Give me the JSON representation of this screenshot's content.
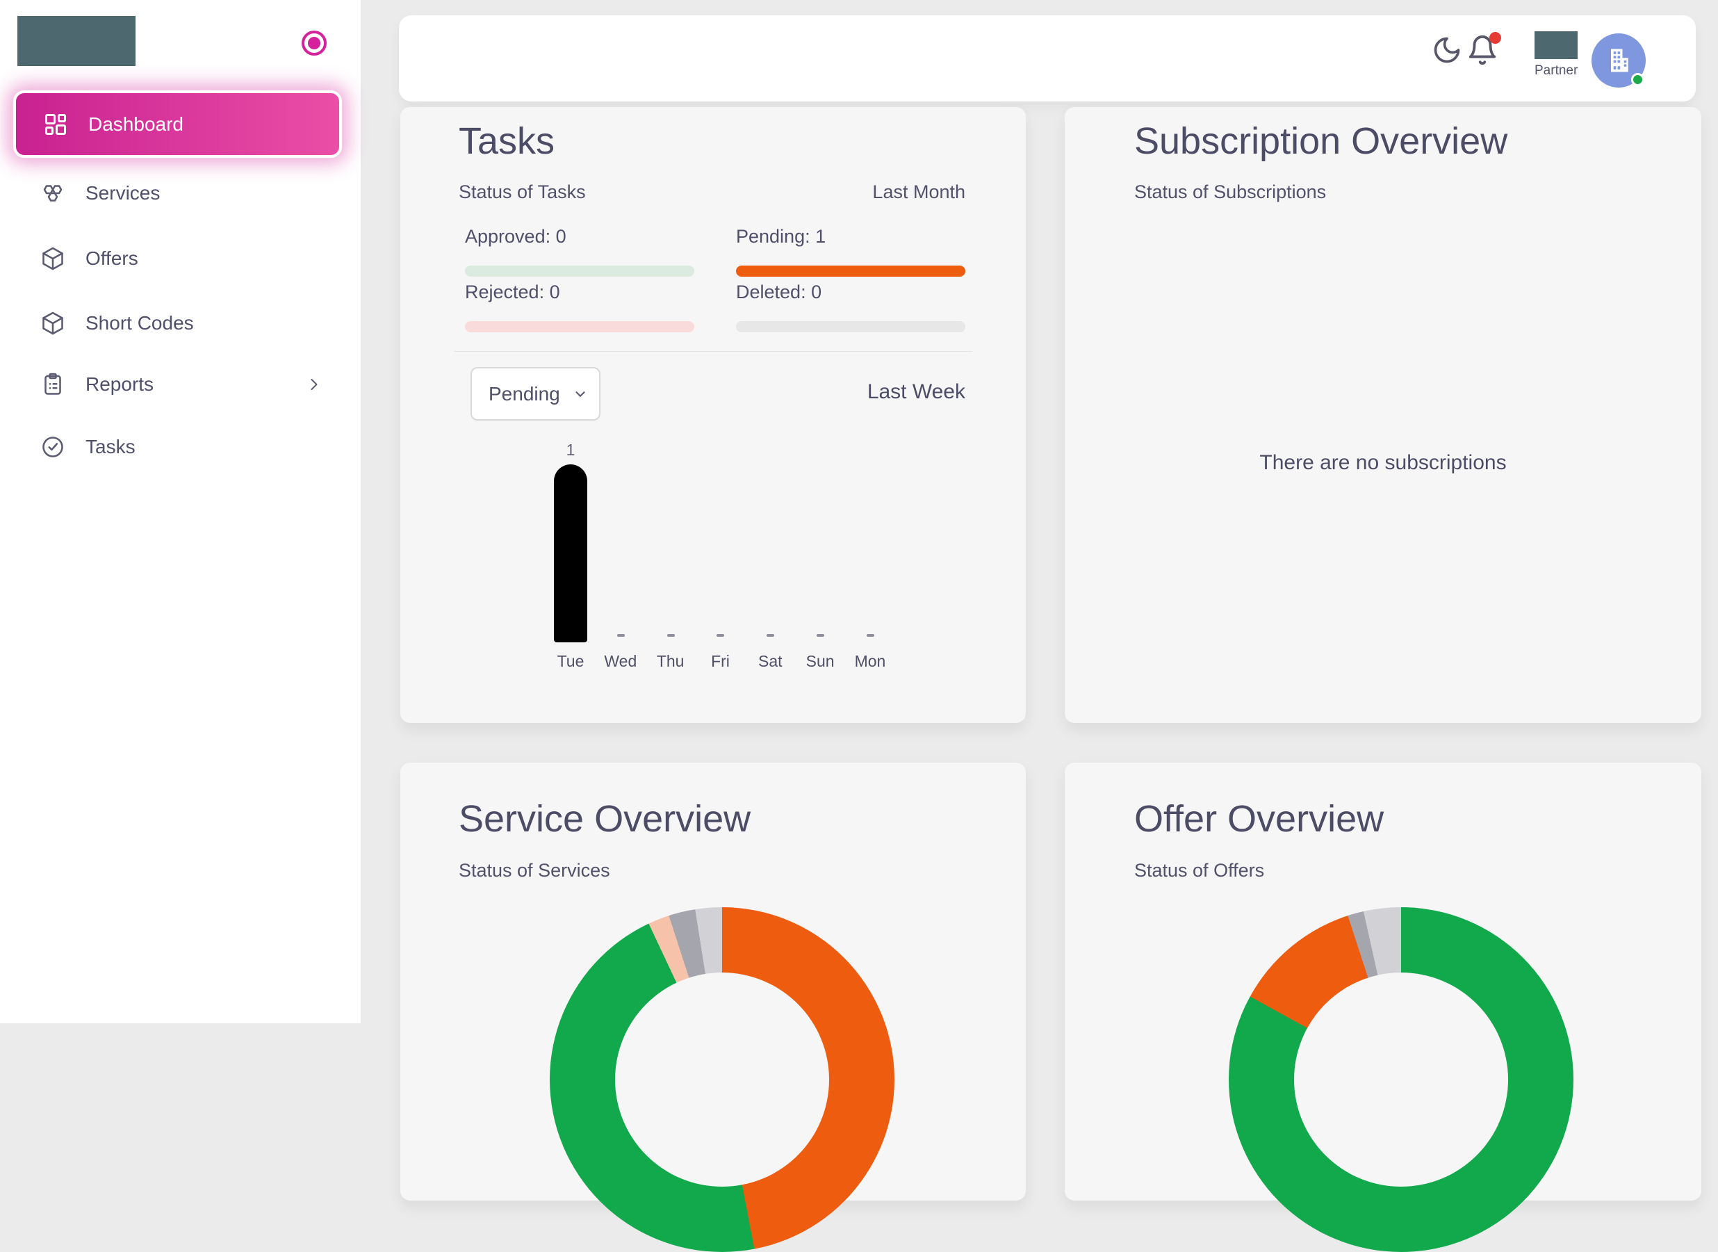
{
  "colors": {
    "accent_pink": "#d6219c",
    "orange": "#ed5c0f",
    "green": "#12a94c",
    "card_bg": "#f6f6f6",
    "logo_teal": "#4d686e",
    "avatar_blue": "#7e97de",
    "online_green": "#1cab49",
    "notification_red": "#e63a34"
  },
  "sidebar": {
    "logo": "company-logo",
    "items": [
      {
        "label": "Dashboard",
        "icon": "dashboard-grid-icon",
        "active": true,
        "has_submenu": false
      },
      {
        "label": "Services",
        "icon": "services-hive-icon",
        "active": false,
        "has_submenu": false
      },
      {
        "label": "Offers",
        "icon": "cube-icon",
        "active": false,
        "has_submenu": false
      },
      {
        "label": "Short Codes",
        "icon": "cube-icon",
        "active": false,
        "has_submenu": false
      },
      {
        "label": "Reports",
        "icon": "clipboard-list-icon",
        "active": false,
        "has_submenu": true
      },
      {
        "label": "Tasks",
        "icon": "check-circle-icon",
        "active": false,
        "has_submenu": false
      }
    ]
  },
  "header": {
    "partner_label": "Partner",
    "notifications_unread": true
  },
  "cards": {
    "tasks": {
      "title": "Tasks",
      "subtitle": "Status of Tasks",
      "period": "Last Month",
      "stats": [
        {
          "label": "Approved",
          "value": 0,
          "bar_color": "#dcebe0"
        },
        {
          "label": "Pending",
          "value": 1,
          "bar_color": "#ed5c0f"
        },
        {
          "label": "Rejected",
          "value": 0,
          "bar_color": "#fadbdb"
        },
        {
          "label": "Deleted",
          "value": 0,
          "bar_color": "#e7e7e7"
        }
      ],
      "filter_selected": "Pending",
      "week_period": "Last Week"
    },
    "subscription": {
      "title": "Subscription Overview",
      "subtitle": "Status of Subscriptions",
      "empty_message": "There are no subscriptions"
    },
    "service": {
      "title": "Service Overview",
      "subtitle": "Status of Services"
    },
    "offer": {
      "title": "Offer Overview",
      "subtitle": "Status of Offers"
    }
  },
  "chart_data": [
    {
      "type": "bar",
      "title": "Tasks per weekday (Pending, Last Week)",
      "categories": [
        "Tue",
        "Wed",
        "Thu",
        "Fri",
        "Sat",
        "Sun",
        "Mon"
      ],
      "values": [
        1,
        0,
        0,
        0,
        0,
        0,
        0
      ],
      "bar_color": "#000000",
      "ylim": [
        0,
        1
      ],
      "zero_marker": "-",
      "grid": false,
      "legend": false
    },
    {
      "type": "pie",
      "donut": true,
      "title": "Service Overview - Status of Services",
      "labels_visible": false,
      "segments": [
        {
          "label": "orange-segment",
          "color": "#ed5c0f",
          "pct": 47.0
        },
        {
          "label": "green-segment",
          "color": "#12a94c",
          "pct": 46.0
        },
        {
          "label": "peach-segment",
          "color": "#f6c3aa",
          "pct": 2.0
        },
        {
          "label": "gray-segment",
          "color": "#a5a5ad",
          "pct": 2.5
        },
        {
          "label": "light-gray-segment",
          "color": "#d2d2d6",
          "pct": 2.5
        }
      ]
    },
    {
      "type": "pie",
      "donut": true,
      "title": "Offer Overview - Status of Offers",
      "labels_visible": false,
      "segments": [
        {
          "label": "green-segment",
          "color": "#12a94c",
          "pct": 83.0
        },
        {
          "label": "orange-segment",
          "color": "#ed5c0f",
          "pct": 12.0
        },
        {
          "label": "gray-segment",
          "color": "#a5a5ad",
          "pct": 1.5
        },
        {
          "label": "light-gray-segment",
          "color": "#d2d2d6",
          "pct": 3.5
        }
      ]
    }
  ]
}
